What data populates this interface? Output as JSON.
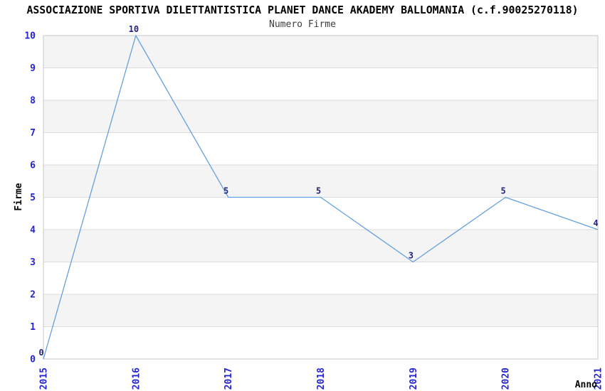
{
  "header": {
    "title": "ASSOCIAZIONE SPORTIVA DILETTANTISTICA PLANET DANCE AKADEMY BALLOMANIA (c.f.90025270118)"
  },
  "chart_data": {
    "type": "line",
    "title": "Numero Firme",
    "categories": [
      "2015",
      "2016",
      "2017",
      "2018",
      "2019",
      "2020",
      "2021"
    ],
    "values": [
      0,
      10,
      5,
      5,
      3,
      5,
      4
    ],
    "point_labels": [
      "0",
      "10",
      "5",
      "5",
      "3",
      "5",
      "4"
    ],
    "xlabel": "Anno",
    "ylabel": "Firme",
    "ylim": [
      0,
      10
    ],
    "ytick_step": 1,
    "yticks": [
      "0",
      "1",
      "2",
      "3",
      "4",
      "5",
      "6",
      "7",
      "8",
      "9",
      "10"
    ],
    "grid": "horizontal gridlines with alternating shaded bands",
    "legend_position": "none",
    "colors": {
      "line": "#64A0DF",
      "axis_tick_labels": "#2424D2",
      "point_labels": "#232380",
      "band_fill": "#F4F4F4",
      "gridline": "#DDDDDD",
      "plot_border": "#D0D0D0",
      "title_text": "#000000",
      "subtitle_text": "#3C3C3C"
    }
  }
}
